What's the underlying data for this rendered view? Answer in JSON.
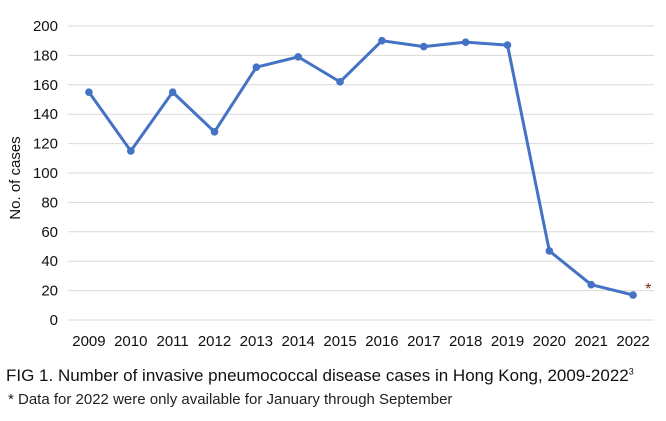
{
  "chart_data": {
    "type": "line",
    "title": "",
    "xlabel": "",
    "ylabel": "No. of cases",
    "categories": [
      "2009",
      "2010",
      "2011",
      "2012",
      "2013",
      "2014",
      "2015",
      "2016",
      "2017",
      "2018",
      "2019",
      "2020",
      "2021",
      "2022"
    ],
    "series": [
      {
        "values": [
          155,
          115,
          155,
          128,
          172,
          179,
          162,
          190,
          186,
          189,
          187,
          47,
          24,
          17
        ]
      }
    ],
    "ylim": [
      0,
      200
    ],
    "yticks": [
      0,
      20,
      40,
      60,
      80,
      100,
      120,
      140,
      160,
      180,
      200
    ],
    "grid": true,
    "legend": "none",
    "annotations": [
      {
        "category": "2022",
        "text": "*"
      }
    ],
    "colors": {
      "line": "#4472C4",
      "grid": "#d9d9d9"
    }
  },
  "caption": {
    "text": "FIG 1. Number of invasive pneumococcal disease cases in Hong Kong, 2009-2022",
    "superscript": "3"
  },
  "note": "*  Data for 2022 were only available for January through September"
}
